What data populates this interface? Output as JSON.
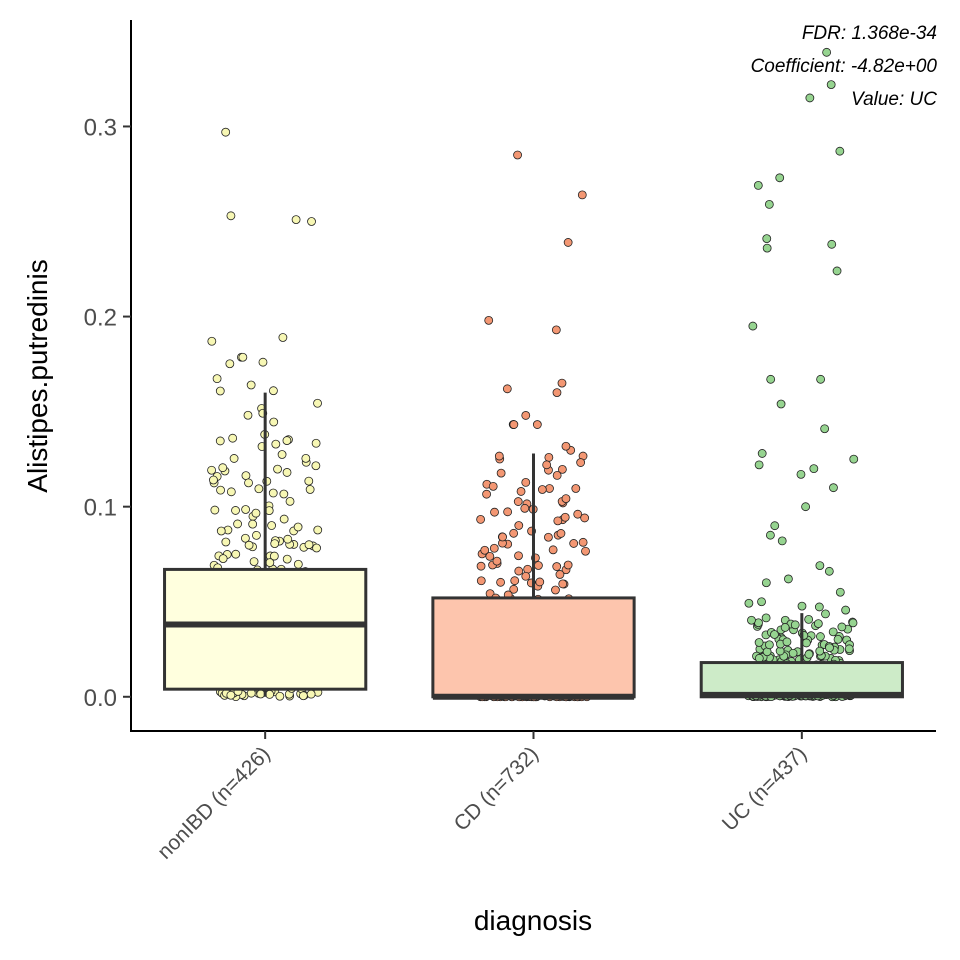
{
  "chart_data": {
    "type": "boxplot",
    "xlabel": "diagnosis",
    "ylabel": "Alistipes.putredinis",
    "ylim": [
      -0.018,
      0.356
    ],
    "yticks": [
      0.0,
      0.1,
      0.2,
      0.3
    ],
    "ytick_labels": [
      "0.0",
      "0.1",
      "0.2",
      "0.3"
    ],
    "grid": false,
    "annotations": [
      "FDR: 1.368e-34",
      "Coefficient: -4.82e+00",
      "Value: UC"
    ],
    "categories": [
      "nonIBD (n=426)",
      "CD (n=732)",
      "UC (n=437)"
    ],
    "colors": [
      "#ffffde",
      "#fdc5ad",
      "#cdebc8"
    ],
    "point_colors": [
      "#f7f7b4",
      "#f39773",
      "#96d490"
    ],
    "series": [
      {
        "name": "nonIBD (n=426)",
        "n": 426,
        "box": {
          "q1": 0.004,
          "median": 0.038,
          "q3": 0.067,
          "whisker_low": 0.0,
          "whisker_high": 0.16
        },
        "outliers": [
          0.297,
          0.253,
          0.251,
          0.25,
          0.189,
          0.187,
          0.176,
          0.164,
          0.161
        ]
      },
      {
        "name": "CD (n=732)",
        "n": 732,
        "box": {
          "q1": 0.0,
          "median": 0.0,
          "q3": 0.052,
          "whisker_low": 0.0,
          "whisker_high": 0.128
        },
        "outliers": [
          0.285,
          0.264,
          0.239,
          0.198,
          0.193,
          0.165,
          0.162,
          0.16,
          0.148
        ]
      },
      {
        "name": "UC (n=437)",
        "n": 437,
        "box": {
          "q1": 0.0,
          "median": 0.001,
          "q3": 0.018,
          "whisker_low": 0.0,
          "whisker_high": 0.044
        },
        "outliers": [
          0.339,
          0.322,
          0.315,
          0.287,
          0.273,
          0.269,
          0.259,
          0.241,
          0.238,
          0.236,
          0.224,
          0.195,
          0.167,
          0.167,
          0.154,
          0.141,
          0.128,
          0.125,
          0.122,
          0.12,
          0.117,
          0.11,
          0.1,
          0.09,
          0.085,
          0.082,
          0.069,
          0.066,
          0.062,
          0.06,
          0.055,
          0.05
        ]
      }
    ]
  }
}
